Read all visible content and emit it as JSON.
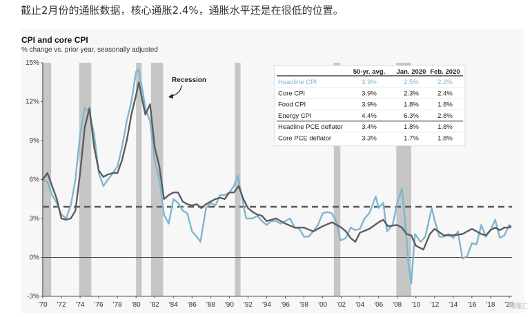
{
  "caption": "截止2月份的通胀数据，核心通胀2.4%，通胀水平还是在很低的位置。",
  "watermark": "格隆汇",
  "chart_data": {
    "type": "line",
    "title": "CPI and core CPI",
    "subtitle": "% change vs. prior year, seasonally adjusted",
    "xlim": [
      1970,
      2020.3
    ],
    "ylim": [
      -3,
      15
    ],
    "y_ticks": [
      -3,
      0,
      3,
      6,
      9,
      12,
      15
    ],
    "y_tick_labels": [
      "-3%",
      "0%",
      "3%",
      "6%",
      "9%",
      "12%",
      "15%"
    ],
    "x_ticks": [
      1970,
      1972,
      1974,
      1976,
      1978,
      1980,
      1982,
      1984,
      1986,
      1988,
      1990,
      1992,
      1994,
      1996,
      1998,
      2000,
      2002,
      2004,
      2006,
      2008,
      2010,
      2012,
      2014,
      2016,
      2018,
      2020
    ],
    "x_tick_labels": [
      "'70",
      "'72",
      "'74",
      "'76",
      "'78",
      "'80",
      "'82",
      "'84",
      "'86",
      "'88",
      "'90",
      "'92",
      "'94",
      "'96",
      "'98",
      "'00",
      "'02",
      "'04",
      "'06",
      "'08",
      "'10",
      "'12",
      "'14",
      "'16",
      "'18",
      "'20"
    ],
    "recessions": [
      [
        1969.9,
        1970.9
      ],
      [
        1973.9,
        1975.2
      ],
      [
        1980.0,
        1980.6
      ],
      [
        1981.6,
        1982.9
      ],
      [
        1990.6,
        1991.2
      ],
      [
        2001.2,
        2001.9
      ],
      [
        2007.9,
        2009.5
      ]
    ],
    "reference_line": {
      "y": 3.9,
      "style": "dashed",
      "color": "#5c5c5c"
    },
    "annotation": "Recession",
    "series": [
      {
        "key": "headline",
        "color": "#7fb5d0",
        "x": [
          1970.0,
          1970.5,
          1971.0,
          1971.5,
          1972.0,
          1972.5,
          1973.0,
          1973.5,
          1974.0,
          1974.5,
          1975.0,
          1975.5,
          1976.0,
          1976.5,
          1977.0,
          1977.5,
          1978.0,
          1978.5,
          1979.0,
          1979.5,
          1980.0,
          1980.3,
          1980.7,
          1981.0,
          1981.5,
          1982.0,
          1982.5,
          1983.0,
          1983.5,
          1984.0,
          1984.5,
          1985.0,
          1985.5,
          1986.0,
          1986.5,
          1986.9,
          1987.5,
          1988.0,
          1988.5,
          1989.0,
          1989.5,
          1990.0,
          1990.5,
          1990.9,
          1991.3,
          1991.8,
          1992.5,
          1993.0,
          1993.5,
          1994.0,
          1994.5,
          1995.0,
          1995.5,
          1996.0,
          1996.5,
          1997.0,
          1997.5,
          1998.0,
          1998.5,
          1999.0,
          1999.5,
          2000.0,
          2000.5,
          2001.0,
          2001.5,
          2001.9,
          2002.5,
          2003.0,
          2003.5,
          2004.0,
          2004.5,
          2005.0,
          2005.7,
          2006.0,
          2006.5,
          2006.9,
          2007.5,
          2008.0,
          2008.5,
          2008.9,
          2009.2,
          2009.5,
          2009.9,
          2010.5,
          2011.0,
          2011.7,
          2012.0,
          2012.5,
          2013.0,
          2013.5,
          2014.0,
          2014.5,
          2015.0,
          2015.5,
          2016.0,
          2016.5,
          2017.0,
          2017.5,
          2018.0,
          2018.5,
          2019.0,
          2019.5,
          2020.0,
          2020.15
        ],
        "y": [
          6.0,
          5.8,
          4.8,
          4.2,
          3.3,
          3.0,
          4.0,
          6.0,
          9.5,
          11.5,
          11.2,
          9.5,
          6.5,
          5.5,
          6.0,
          6.5,
          7.0,
          8.5,
          10.5,
          12.0,
          14.3,
          14.5,
          12.8,
          11.5,
          10.5,
          7.5,
          6.0,
          3.3,
          2.6,
          4.5,
          4.2,
          3.6,
          3.4,
          2.0,
          1.6,
          1.2,
          3.8,
          4.2,
          4.0,
          4.8,
          4.8,
          5.0,
          5.5,
          6.3,
          4.8,
          3.0,
          3.0,
          3.2,
          2.8,
          2.5,
          2.8,
          2.8,
          2.6,
          2.8,
          3.0,
          2.3,
          2.2,
          1.6,
          1.6,
          2.0,
          2.5,
          3.4,
          3.5,
          3.4,
          2.7,
          1.3,
          1.5,
          2.3,
          2.1,
          2.2,
          3.0,
          3.4,
          4.7,
          3.8,
          4.2,
          2.0,
          2.5,
          4.2,
          5.3,
          2.3,
          -0.5,
          -2.0,
          1.8,
          1.2,
          1.6,
          3.8,
          2.9,
          1.6,
          1.6,
          1.8,
          1.5,
          2.0,
          -0.1,
          0.1,
          1.1,
          1.0,
          2.5,
          1.6,
          2.1,
          2.9,
          1.5,
          1.7,
          2.5,
          2.3
        ]
      },
      {
        "key": "core",
        "color": "#5c5c5c",
        "x": [
          1970.0,
          1970.5,
          1971.0,
          1971.5,
          1972.0,
          1972.5,
          1973.0,
          1973.5,
          1974.0,
          1974.5,
          1975.0,
          1975.5,
          1976.0,
          1976.5,
          1977.0,
          1977.5,
          1978.0,
          1978.5,
          1979.0,
          1979.5,
          1980.0,
          1980.3,
          1980.7,
          1981.0,
          1981.5,
          1982.0,
          1982.5,
          1983.0,
          1983.5,
          1984.0,
          1984.5,
          1985.0,
          1985.5,
          1986.0,
          1986.5,
          1987.0,
          1987.5,
          1988.0,
          1988.5,
          1989.0,
          1989.5,
          1990.0,
          1990.5,
          1991.0,
          1991.5,
          1992.0,
          1992.5,
          1993.0,
          1993.5,
          1994.0,
          1995.0,
          1996.0,
          1997.0,
          1998.0,
          1999.0,
          2000.0,
          2001.0,
          2002.0,
          2002.5,
          2003.0,
          2003.5,
          2004.0,
          2005.0,
          2006.0,
          2006.5,
          2007.0,
          2008.0,
          2008.5,
          2009.0,
          2009.5,
          2010.0,
          2010.8,
          2011.5,
          2012.0,
          2013.0,
          2014.0,
          2015.0,
          2016.0,
          2017.0,
          2017.5,
          2018.0,
          2018.5,
          2019.0,
          2019.5,
          2020.0,
          2020.15
        ],
        "y": [
          6.0,
          6.5,
          5.5,
          4.5,
          3.0,
          2.9,
          3.0,
          3.6,
          6.5,
          10.0,
          11.5,
          8.5,
          6.7,
          6.2,
          6.4,
          6.5,
          6.5,
          7.5,
          9.0,
          11.0,
          12.5,
          13.5,
          12.0,
          11.0,
          11.8,
          8.5,
          7.0,
          4.5,
          4.8,
          5.0,
          5.0,
          4.3,
          4.1,
          4.0,
          4.1,
          3.8,
          4.1,
          4.3,
          4.5,
          4.6,
          4.5,
          5.0,
          5.0,
          5.5,
          4.5,
          3.8,
          3.5,
          3.3,
          3.2,
          2.8,
          3.0,
          2.6,
          2.3,
          2.3,
          2.0,
          2.4,
          2.7,
          2.3,
          2.0,
          1.5,
          1.2,
          1.9,
          2.2,
          2.7,
          2.9,
          2.4,
          2.5,
          2.3,
          1.8,
          1.7,
          0.9,
          0.6,
          1.8,
          2.2,
          1.7,
          1.7,
          1.8,
          2.2,
          1.8,
          1.7,
          2.1,
          2.3,
          2.1,
          2.3,
          2.3,
          2.4
        ]
      }
    ]
  },
  "table": {
    "columns": [
      "",
      "50-yr. avg.",
      "Jan. 2020",
      "Feb. 2020"
    ],
    "rows": [
      {
        "label": "Headline CPI",
        "avg": "3.9%",
        "jan": "2.5%",
        "feb": "2.3%",
        "highlight": true
      },
      {
        "label": "Core CPI",
        "avg": "3.9%",
        "jan": "2.3%",
        "feb": "2.4%"
      },
      {
        "label": "Food CPI",
        "avg": "3.9%",
        "jan": "1.8%",
        "feb": "1.8%"
      },
      {
        "label": "Energy CPI",
        "avg": "4.4%",
        "jan": "6.3%",
        "feb": "2.8%"
      },
      {
        "label": "Headline PCE deflator",
        "avg": "3.4%",
        "jan": "1.8%",
        "feb": "1.8%"
      },
      {
        "label": "Core PCE deflator",
        "avg": "3.3%",
        "jan": "1.7%",
        "feb": "1.8%"
      }
    ]
  }
}
